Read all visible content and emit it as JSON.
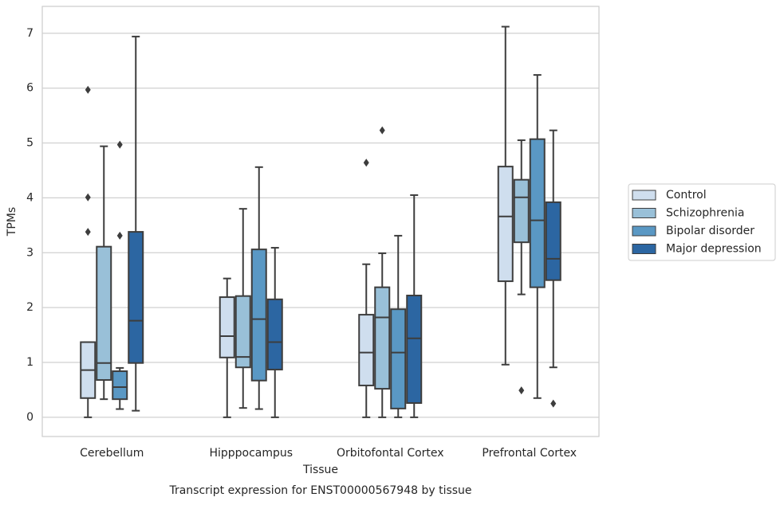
{
  "chart_data": {
    "type": "box",
    "title": "Transcript expression for ENST00000567948 by tissue",
    "x_label": "Tissue",
    "y_label": "TPMs",
    "categories": [
      "Cerebellum",
      "Hipppocampus",
      "Orbitofontal Cortex",
      "Prefrontal Cortex"
    ],
    "ylim": [
      -0.35,
      7.49
    ],
    "yticks": [
      0,
      1,
      2,
      3,
      4,
      5,
      6,
      7
    ],
    "grid": true,
    "legend": "right",
    "series": [
      {
        "name": "Control",
        "color": "#cfdeee",
        "boxes": [
          {
            "min": 0,
            "q1": 0.35,
            "median": 0.86,
            "q3": 1.37,
            "max": 1.37,
            "outliers": [
              5.97,
              4.01,
              3.38
            ]
          },
          {
            "min": 0,
            "q1": 1.09,
            "median": 1.48,
            "q3": 2.19,
            "max": 2.53,
            "outliers": []
          },
          {
            "min": 0,
            "q1": 0.58,
            "median": 1.18,
            "q3": 1.87,
            "max": 2.79,
            "outliers": [
              4.64
            ]
          },
          {
            "min": 0.96,
            "q1": 2.48,
            "median": 3.66,
            "q3": 4.57,
            "max": 7.12,
            "outliers": []
          }
        ]
      },
      {
        "name": "Schizophrenia",
        "color": "#99c0d8",
        "boxes": [
          {
            "min": 0.33,
            "q1": 0.68,
            "median": 0.99,
            "q3": 3.11,
            "max": 4.94,
            "outliers": []
          },
          {
            "min": 0.17,
            "q1": 0.91,
            "median": 1.1,
            "q3": 2.21,
            "max": 3.8,
            "outliers": []
          },
          {
            "min": 0,
            "q1": 0.52,
            "median": 1.82,
            "q3": 2.37,
            "max": 2.99,
            "outliers": [
              5.23
            ]
          },
          {
            "min": 2.24,
            "q1": 3.19,
            "median": 4.01,
            "q3": 4.33,
            "max": 5.05,
            "outliers": [
              0.49
            ]
          }
        ]
      },
      {
        "name": "Bipolar disorder",
        "color": "#5a98c4",
        "boxes": [
          {
            "min": 0.15,
            "q1": 0.33,
            "median": 0.55,
            "q3": 0.84,
            "max": 0.9,
            "outliers": [
              4.97,
              3.31
            ]
          },
          {
            "min": 0.15,
            "q1": 0.67,
            "median": 1.79,
            "q3": 3.06,
            "max": 4.56,
            "outliers": []
          },
          {
            "min": 0,
            "q1": 0.16,
            "median": 1.18,
            "q3": 1.97,
            "max": 3.31,
            "outliers": []
          },
          {
            "min": 0.35,
            "q1": 2.37,
            "median": 3.59,
            "q3": 5.07,
            "max": 6.24,
            "outliers": []
          }
        ]
      },
      {
        "name": "Major depression",
        "color": "#2c66a2",
        "boxes": [
          {
            "min": 0.12,
            "q1": 0.99,
            "median": 1.76,
            "q3": 3.38,
            "max": 6.94,
            "outliers": []
          },
          {
            "min": 0,
            "q1": 0.87,
            "median": 1.37,
            "q3": 2.15,
            "max": 3.09,
            "outliers": []
          },
          {
            "min": 0,
            "q1": 0.26,
            "median": 1.44,
            "q3": 2.22,
            "max": 4.05,
            "outliers": []
          },
          {
            "min": 0.91,
            "q1": 2.5,
            "median": 2.89,
            "q3": 3.92,
            "max": 5.23,
            "outliers": [
              0.25
            ]
          }
        ]
      }
    ]
  }
}
